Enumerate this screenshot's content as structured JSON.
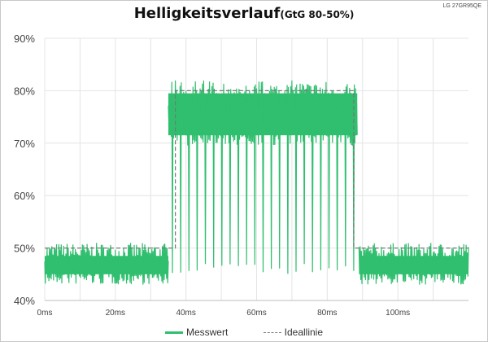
{
  "title": "Helligkeitsverlauf",
  "subtitle": "(GtG 80-50%)",
  "model_label": "LG 27GR95QE",
  "colors": {
    "measured": "#2fbf6e",
    "ideal": "#777777",
    "grid": "#e4e4e4"
  },
  "legend": {
    "position": "bottom-center"
  },
  "chart_data": {
    "type": "line",
    "xlim": [
      0,
      120
    ],
    "ylim": [
      40,
      90
    ],
    "grid": true,
    "xticks": [
      "0ms",
      "20ms",
      "40ms",
      "60ms",
      "80ms",
      "100ms"
    ],
    "yticks": [
      "40%",
      "50%",
      "60%",
      "70%",
      "80%",
      "90%"
    ],
    "series": [
      {
        "name": "Messwert",
        "segments": [
          {
            "x_start": 0,
            "x_end": 35,
            "mean": 46.5,
            "min": 43,
            "max": 51
          },
          {
            "x_start": 35,
            "x_end": 88.5,
            "mean": 75,
            "min": 69.5,
            "max": 82,
            "dropout_min": 45
          },
          {
            "x_start": 89,
            "x_end": 120,
            "mean": 46.5,
            "min": 43,
            "max": 51
          }
        ]
      },
      {
        "name": "Ideallinie",
        "points": [
          [
            0,
            50
          ],
          [
            37,
            50
          ],
          [
            37,
            80
          ],
          [
            87.5,
            80
          ],
          [
            87.5,
            50
          ],
          [
            120,
            50
          ]
        ]
      }
    ]
  }
}
